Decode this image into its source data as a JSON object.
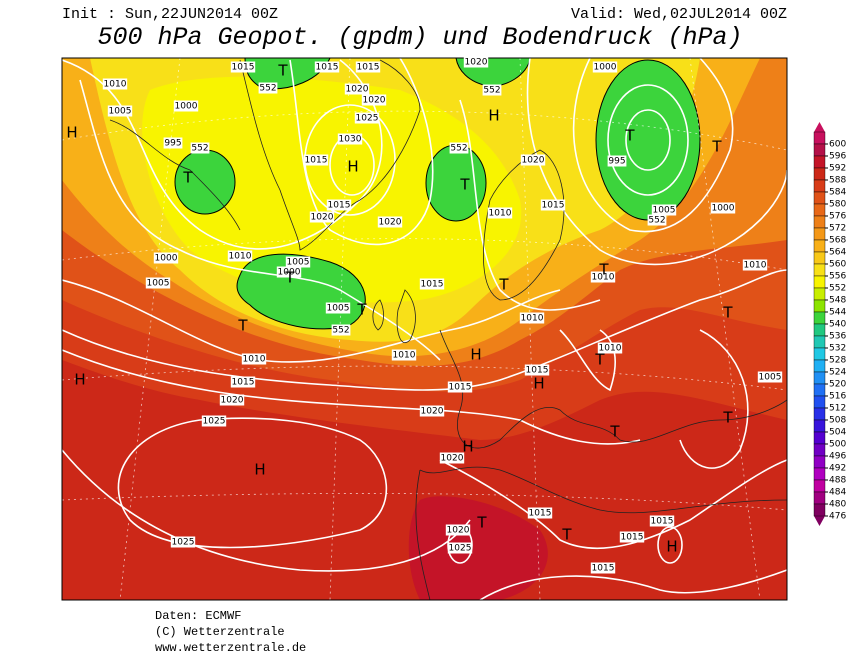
{
  "header": {
    "init": "Init : Sun,22JUN2014 00Z",
    "valid": "Valid: Wed,02JUL2014 00Z",
    "title": "500 hPa Geopot. (gpdm) und Bodendruck (hPa)"
  },
  "footer": {
    "data": "Daten: ECMWF",
    "copyright": "(C) Wetterzentrale",
    "url": "www.wetterzentrale.de"
  },
  "legend": {
    "levels": [
      600,
      596,
      592,
      588,
      584,
      580,
      576,
      572,
      568,
      564,
      560,
      556,
      552,
      548,
      544,
      540,
      536,
      532,
      528,
      524,
      520,
      516,
      512,
      508,
      504,
      500,
      496,
      492,
      488,
      484,
      480,
      476
    ],
    "colors": [
      "#c8105e",
      "#b41048",
      "#c41428",
      "#cc2818",
      "#d83c18",
      "#e05218",
      "#e86818",
      "#ee8018",
      "#f49818",
      "#f8b018",
      "#f8c818",
      "#f8e018",
      "#f8f400",
      "#c8ee00",
      "#8ce400",
      "#3cd43c",
      "#20c880",
      "#20c8b4",
      "#20c8e4",
      "#20b0f4",
      "#2090f4",
      "#2070f4",
      "#2050f0",
      "#2830e8",
      "#3814dc",
      "#5400d0",
      "#7000c4",
      "#9000c4",
      "#b000c0",
      "#c000a0",
      "#a00080",
      "#800060"
    ]
  },
  "isobar_labels": [
    "1010",
    "1005",
    "1000",
    "995",
    "552",
    "1015",
    "552",
    "1015",
    "1015",
    "1020",
    "1020",
    "1025",
    "1030",
    "1015",
    "1020",
    "1015",
    "1020",
    "1020",
    "552",
    "552",
    "1010",
    "1015",
    "1020",
    "1000",
    "995",
    "1005",
    "552",
    "1000",
    "1000",
    "1005",
    "1010",
    "1000",
    "1005",
    "1005",
    "552",
    "1015",
    "1010",
    "1010",
    "1010",
    "1010",
    "1010",
    "1015",
    "1005",
    "1010",
    "1015",
    "1020",
    "1015",
    "1020",
    "1025",
    "1020",
    "1020",
    "1025",
    "1015",
    "1015",
    "1015",
    "1015",
    "1025"
  ],
  "pressure_centers": [
    "H",
    "H",
    "T",
    "T",
    "H",
    "T",
    "T",
    "T",
    "T",
    "T",
    "T",
    "T",
    "T",
    "T",
    "H",
    "T",
    "H",
    "H",
    "T",
    "T",
    "H",
    "H",
    "T",
    "T",
    "H"
  ]
}
